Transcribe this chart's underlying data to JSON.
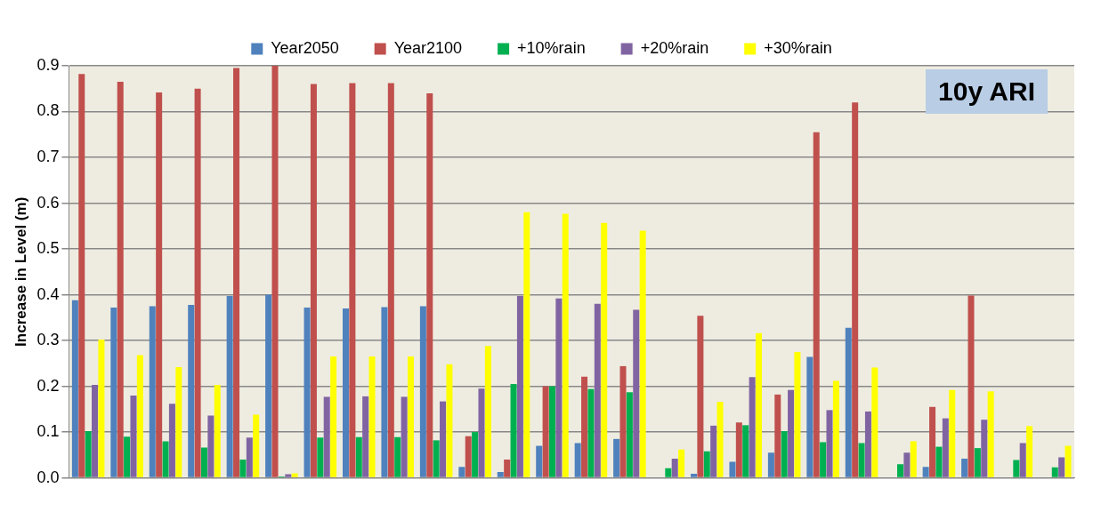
{
  "chart_data": {
    "type": "bar",
    "ylabel": "Increase in Level (m)",
    "annotations": [
      "10y ARI"
    ],
    "categories": [
      null,
      null,
      null,
      null,
      null,
      null,
      null,
      null,
      null,
      null,
      null,
      null,
      null,
      null,
      null,
      null,
      null,
      null,
      null,
      null,
      null,
      null,
      null,
      null,
      null,
      null
    ],
    "ylim": [
      0,
      0.9
    ],
    "yticks": [
      {
        "value": 0,
        "label": "0.0"
      },
      0.1,
      0.2,
      0.3,
      0.4,
      0.5,
      0.6,
      0.7,
      0.8,
      0.9
    ],
    "grid": "y",
    "legend": "top",
    "series": [
      {
        "name": "Year2050",
        "color": "#4f81bd",
        "values": [
          0.388,
          0.372,
          0.375,
          0.378,
          0.397,
          0.4,
          0.372,
          0.37,
          0.373,
          0.375,
          0.024,
          0.013,
          0.07,
          0.076,
          0.085,
          null,
          0.009,
          0.035,
          0.055,
          0.264,
          0.328,
          null,
          0.024,
          0.042,
          null,
          null
        ]
      },
      {
        "name": "Year2100",
        "color": "#c0504d",
        "values": [
          0.882,
          0.865,
          0.842,
          0.85,
          0.895,
          0.9,
          0.86,
          0.862,
          0.862,
          0.84,
          0.091,
          0.04,
          0.2,
          0.221,
          0.244,
          null,
          0.354,
          0.121,
          0.182,
          0.755,
          0.82,
          null,
          0.155,
          0.398,
          null,
          null
        ]
      },
      {
        "name": "+10%rain",
        "color": "#00b050",
        "values": [
          0.102,
          0.09,
          0.08,
          0.066,
          0.04,
          0.003,
          0.088,
          0.089,
          0.089,
          0.082,
          0.1,
          0.205,
          0.2,
          0.194,
          0.187,
          0.021,
          0.058,
          0.115,
          0.102,
          0.078,
          0.076,
          0.03,
          0.068,
          0.065,
          0.039,
          0.023
        ]
      },
      {
        "name": "+20%rain",
        "color": "#8064a2",
        "values": [
          0.203,
          0.18,
          0.162,
          0.136,
          0.088,
          0.008,
          0.177,
          0.178,
          0.177,
          0.167,
          0.195,
          0.397,
          0.392,
          0.38,
          0.367,
          0.042,
          0.114,
          0.22,
          0.192,
          0.148,
          0.145,
          0.055,
          0.13,
          0.127,
          0.076,
          0.045
        ]
      },
      {
        "name": "+30%rain",
        "color": "#ffff00",
        "values": [
          0.302,
          0.268,
          0.242,
          0.203,
          0.138,
          0.01,
          0.265,
          0.265,
          0.265,
          0.248,
          0.288,
          0.58,
          0.577,
          0.557,
          0.54,
          0.062,
          0.166,
          0.316,
          0.275,
          0.212,
          0.241,
          0.08,
          0.192,
          0.189,
          0.113,
          0.07
        ]
      }
    ]
  }
}
